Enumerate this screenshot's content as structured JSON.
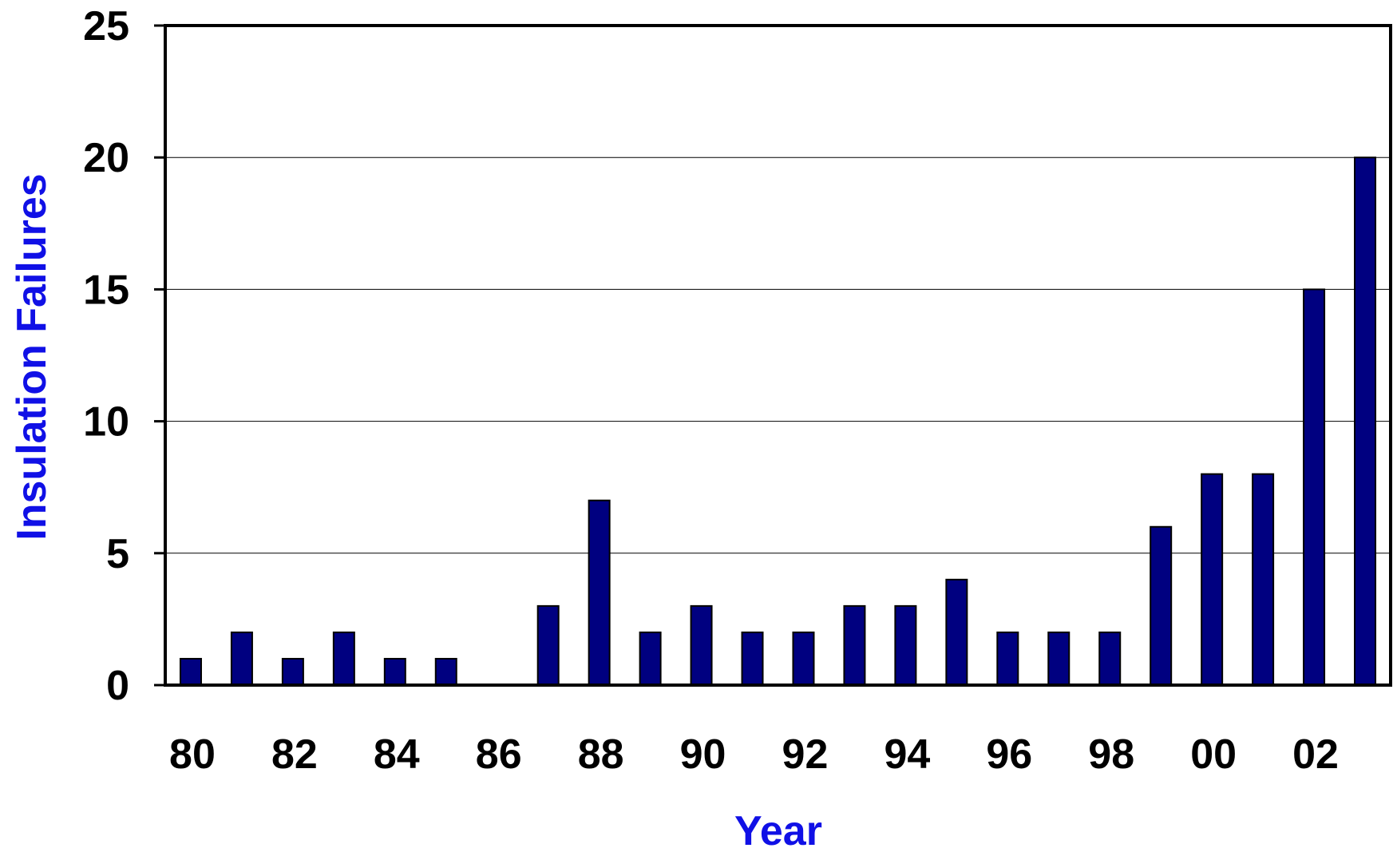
{
  "chart_data": {
    "type": "bar",
    "categories": [
      "80",
      "81",
      "82",
      "83",
      "84",
      "85",
      "86",
      "87",
      "88",
      "89",
      "90",
      "91",
      "92",
      "93",
      "94",
      "95",
      "96",
      "97",
      "98",
      "99",
      "00",
      "01",
      "02",
      "03"
    ],
    "values": [
      1,
      2,
      1,
      2,
      1,
      1,
      0,
      3,
      7,
      2,
      3,
      2,
      2,
      3,
      3,
      4,
      2,
      2,
      2,
      6,
      8,
      8,
      15,
      20
    ],
    "x_tick_labels": [
      "80",
      "82",
      "84",
      "86",
      "88",
      "90",
      "92",
      "94",
      "96",
      "98",
      "00",
      "02"
    ],
    "y_ticks": [
      0,
      5,
      10,
      15,
      20,
      25
    ],
    "xlabel": "Year",
    "ylabel": "Insulation Failures",
    "ylim": [
      0,
      25
    ],
    "grid": true,
    "bar_color": "#000080",
    "axis_title_color": "#1010e6"
  }
}
